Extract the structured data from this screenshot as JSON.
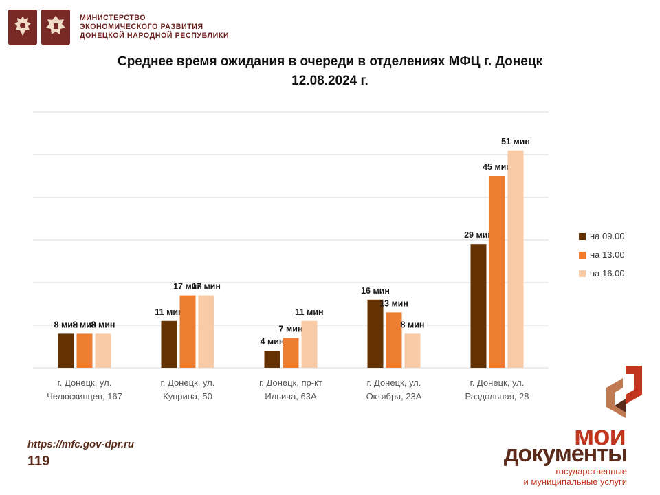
{
  "header": {
    "ministry_line1": "МИНИСТЕРСТВО",
    "ministry_line2": "ЭКОНОМИЧЕСКОГО РАЗВИТИЯ",
    "ministry_line3": "ДОНЕЦКОЙ НАРОДНОЙ РЕСПУБЛИКИ"
  },
  "footer": {
    "url": "https://mfc.gov-dpr.ru",
    "page_number": "119"
  },
  "brand": {
    "line1": "мои",
    "line2": "документы",
    "line3": "государственные",
    "line4": "и муниципальные услуги"
  },
  "colors": {
    "s0900": "#643200",
    "s1300": "#ec7d31",
    "s1600": "#f8caa6",
    "gridline": "#d9d9d9",
    "emblem": "#7a2a26",
    "brand_red": "#c2361f",
    "brand_brown": "#5a2a1a"
  },
  "chart_data": {
    "type": "bar",
    "title_line1": "Среднее время ожидания в очереди в отделениях МФЦ г. Донецк",
    "title_line2": "12.08.2024 г.",
    "categories": [
      [
        "г. Донецк, ул.",
        "Челюскинцев, 167"
      ],
      [
        "г. Донецк, ул.",
        "Куприна, 50"
      ],
      [
        "г. Донецк, пр-кт",
        "Ильича, 63А"
      ],
      [
        "г. Донецк, ул.",
        "Октября, 23А"
      ],
      [
        "г. Донецк, ул.",
        "Раздольная, 28"
      ]
    ],
    "series": [
      {
        "name": "на 09.00",
        "values": [
          8,
          11,
          4,
          16,
          29
        ],
        "labels": [
          "8 мин",
          "11 мин",
          "4 мин",
          "16 мин",
          "29 мин"
        ]
      },
      {
        "name": "на 13.00",
        "values": [
          8,
          17,
          7,
          13,
          45
        ],
        "labels": [
          "8 мин",
          "17 мин",
          "7 мин",
          "13 мин",
          "45 мин"
        ]
      },
      {
        "name": "на 16.00",
        "values": [
          8,
          17,
          11,
          8,
          51
        ],
        "labels": [
          "8 мин",
          "17 мин",
          "11 мин",
          "8 мин",
          "51 мин"
        ]
      }
    ],
    "ylim": [
      0,
      60
    ],
    "grid": true,
    "legend_position": "right"
  }
}
